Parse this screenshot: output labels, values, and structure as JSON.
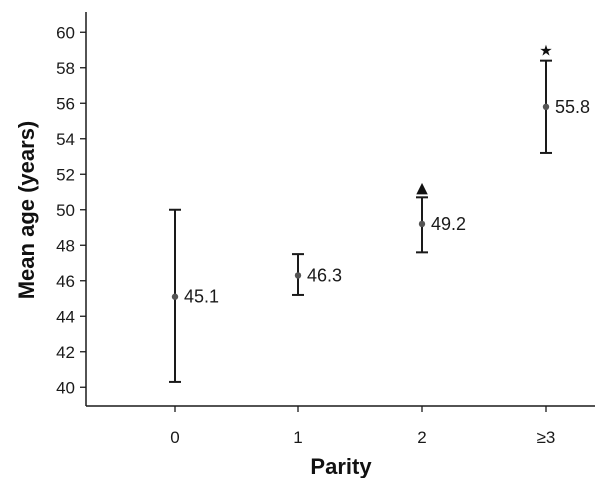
{
  "chart_data": {
    "type": "scatter",
    "xlabel": "Parity",
    "ylabel": "Mean age (years)",
    "categories": [
      "0",
      "1",
      "2",
      "≥3"
    ],
    "ylim": [
      39,
      61
    ],
    "yticks": [
      40,
      42,
      44,
      46,
      48,
      50,
      52,
      54,
      56,
      58,
      60
    ],
    "grid": false,
    "points": [
      {
        "category": "0",
        "mean": 45.1,
        "lower": 40.3,
        "upper": 50.0,
        "label": "45.1",
        "marker": ""
      },
      {
        "category": "1",
        "mean": 46.3,
        "lower": 45.2,
        "upper": 47.5,
        "label": "46.3",
        "marker": ""
      },
      {
        "category": "2",
        "mean": 49.2,
        "lower": 47.6,
        "upper": 50.7,
        "label": "49.2",
        "marker": "▲"
      },
      {
        "category": "≥3",
        "mean": 55.8,
        "lower": 53.2,
        "upper": 58.4,
        "label": "55.8",
        "marker": "★"
      }
    ],
    "colors": {
      "marks": "#1a1a1a",
      "point": "#555555"
    }
  }
}
